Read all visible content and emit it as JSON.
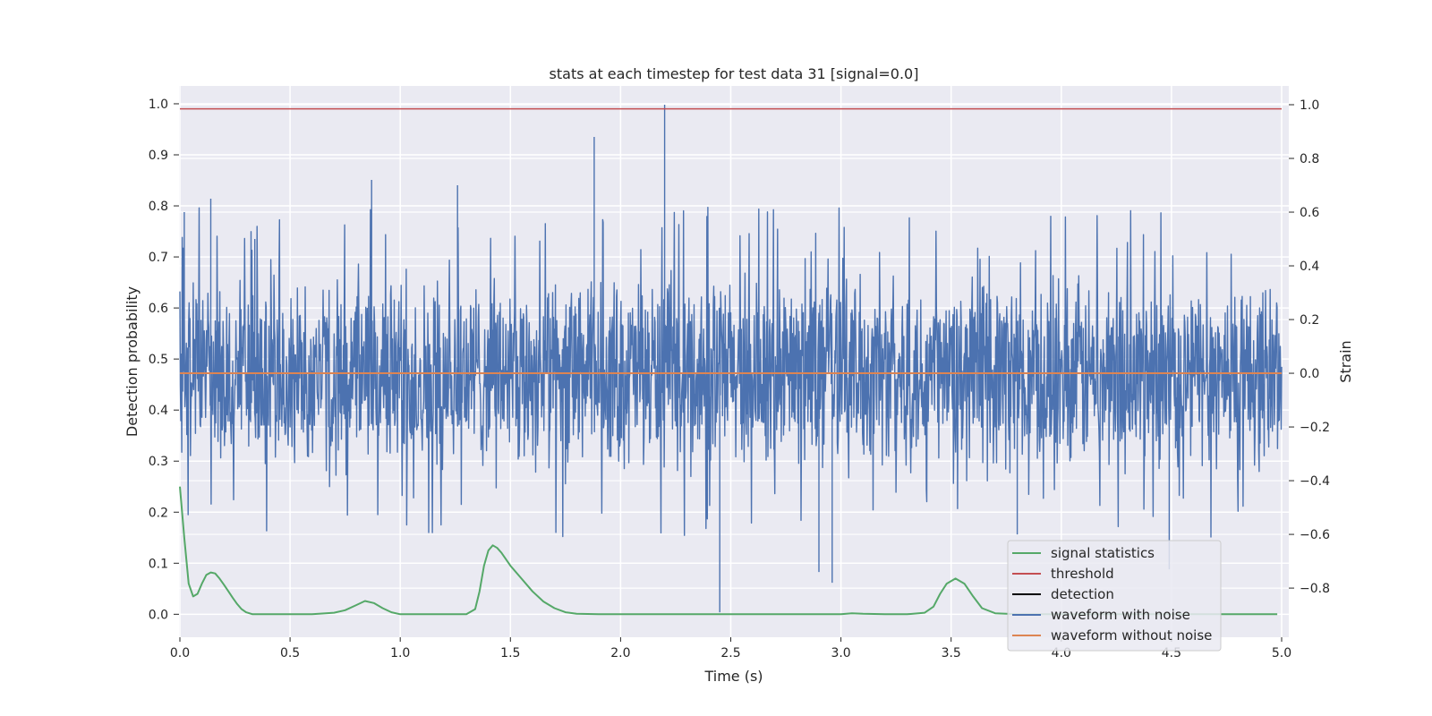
{
  "chart_data": {
    "type": "line",
    "title": "stats at each timestep for test data 31 [signal=0.0]",
    "xlabel": "Time (s)",
    "ylabel": "Detection probability",
    "y2label": "Strain",
    "xlim": [
      0.0,
      5.0
    ],
    "ylim": [
      -0.045,
      1.035
    ],
    "y2lim": [
      -0.983,
      1.07
    ],
    "xticks": [
      0.0,
      0.5,
      1.0,
      1.5,
      2.0,
      2.5,
      3.0,
      3.5,
      4.0,
      4.5,
      5.0
    ],
    "xtick_labels": [
      "0.0",
      "0.5",
      "1.0",
      "1.5",
      "2.0",
      "2.5",
      "3.0",
      "3.5",
      "4.0",
      "4.5",
      "5.0"
    ],
    "yticks": [
      0.0,
      0.1,
      0.2,
      0.3,
      0.4,
      0.5,
      0.6,
      0.7,
      0.8,
      0.9,
      1.0
    ],
    "ytick_labels": [
      "0.0",
      "0.1",
      "0.2",
      "0.3",
      "0.4",
      "0.5",
      "0.6",
      "0.7",
      "0.8",
      "0.9",
      "1.0"
    ],
    "y2ticks": [
      -0.8,
      -0.6,
      -0.4,
      -0.2,
      0.0,
      0.2,
      0.4,
      0.6,
      0.8,
      1.0
    ],
    "y2tick_labels": [
      "−0.8",
      "−0.6",
      "−0.4",
      "−0.2",
      "0.0",
      "0.2",
      "0.4",
      "0.6",
      "0.8",
      "1.0"
    ],
    "grid": true,
    "legend_position": "bottom-right",
    "legend": [
      {
        "label": "signal statistics",
        "color": "#55a868"
      },
      {
        "label": "threshold",
        "color": "#c44e52"
      },
      {
        "label": "detection",
        "color": "#000000"
      },
      {
        "label": "waveform with noise",
        "color": "#4c72b0"
      },
      {
        "label": "waveform without noise",
        "color": "#dd8452"
      }
    ],
    "series": [
      {
        "name": "signal statistics",
        "axis": "left",
        "color": "#55a868",
        "x": [
          0.0,
          0.02,
          0.04,
          0.06,
          0.08,
          0.1,
          0.12,
          0.14,
          0.16,
          0.18,
          0.2,
          0.22,
          0.24,
          0.26,
          0.28,
          0.3,
          0.33,
          0.36,
          0.4,
          0.5,
          0.6,
          0.7,
          0.75,
          0.8,
          0.84,
          0.88,
          0.92,
          0.96,
          1.0,
          1.1,
          1.2,
          1.3,
          1.34,
          1.36,
          1.38,
          1.4,
          1.42,
          1.44,
          1.46,
          1.5,
          1.55,
          1.6,
          1.65,
          1.7,
          1.75,
          1.8,
          1.9,
          2.0,
          2.2,
          2.4,
          2.6,
          2.8,
          3.0,
          3.05,
          3.1,
          3.2,
          3.3,
          3.38,
          3.42,
          3.45,
          3.48,
          3.52,
          3.56,
          3.6,
          3.64,
          3.7,
          3.8,
          4.0,
          4.5,
          4.98
        ],
        "y": [
          0.25,
          0.15,
          0.06,
          0.035,
          0.04,
          0.06,
          0.077,
          0.082,
          0.08,
          0.07,
          0.058,
          0.045,
          0.032,
          0.02,
          0.01,
          0.004,
          0.0,
          0.0,
          0.0,
          0.0,
          0.0,
          0.003,
          0.008,
          0.018,
          0.026,
          0.022,
          0.012,
          0.004,
          0.0,
          0.0,
          0.0,
          0.0,
          0.01,
          0.045,
          0.095,
          0.125,
          0.135,
          0.13,
          0.12,
          0.095,
          0.07,
          0.045,
          0.025,
          0.012,
          0.004,
          0.001,
          0.0,
          0.0,
          0.0,
          0.0,
          0.0,
          0.0,
          0.0,
          0.002,
          0.001,
          0.0,
          0.0,
          0.003,
          0.015,
          0.04,
          0.06,
          0.07,
          0.06,
          0.035,
          0.012,
          0.002,
          0.0,
          0.0,
          0.0,
          0.0
        ]
      },
      {
        "name": "threshold",
        "axis": "left",
        "color": "#c44e52",
        "x": [
          0.0,
          5.0
        ],
        "y": [
          0.99,
          0.99
        ]
      },
      {
        "name": "waveform with noise",
        "axis": "right",
        "color": "#4c72b0",
        "amplitude_envelope": [
          -0.4,
          0.4
        ],
        "x": [
          0.02,
          0.14,
          0.34,
          0.87,
          1.26,
          1.88,
          2.2,
          2.45,
          2.9,
          2.96,
          3.8,
          4.49
        ],
        "y": [
          0.6,
          0.65,
          0.5,
          0.72,
          0.7,
          0.88,
          1.0,
          -0.89,
          -0.74,
          -0.78,
          -0.6,
          -0.73
        ]
      },
      {
        "name": "waveform without noise",
        "axis": "right",
        "color": "#dd8452",
        "x": [
          0.0,
          5.0
        ],
        "y": [
          0.0,
          0.0
        ]
      }
    ]
  }
}
